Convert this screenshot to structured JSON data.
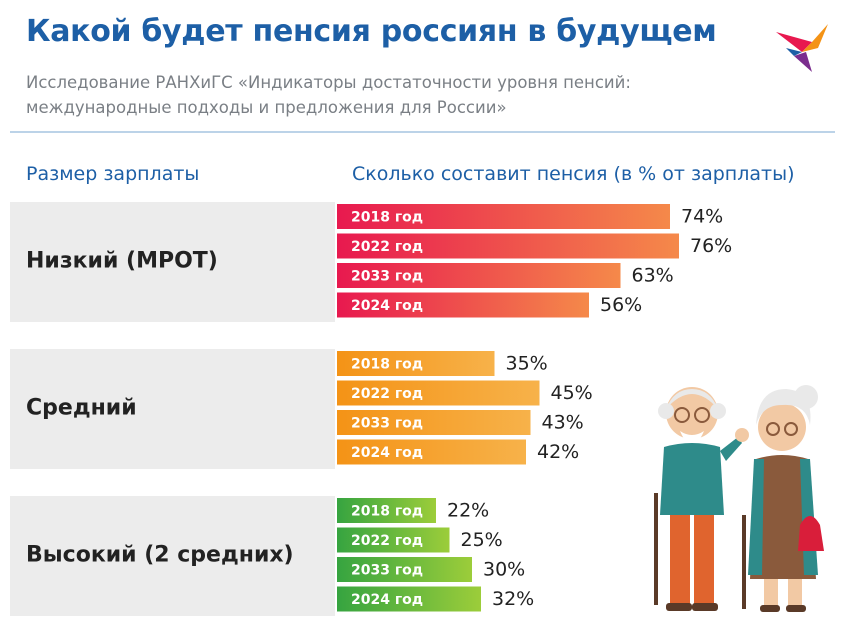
{
  "header": {
    "title": "Какой будет пенсия россиян в будущем",
    "subtitle_line1": "Исследование РАНХиГС «Индикаторы достаточности уровня пенсий:",
    "subtitle_line2": "международные подходы и предложения для России»"
  },
  "chart_data": {
    "type": "bar",
    "orientation": "horizontal",
    "xlabel": "Размер зарплаты",
    "ylabel": "Сколько составит пенсия (в % от зарплаты)",
    "value_suffix": "%",
    "year_labels": [
      "2018 год",
      "2022 год",
      "2033 год",
      "2024 год"
    ],
    "groups": [
      {
        "name": "Низкий (МРОТ)",
        "values": [
          74,
          76,
          63,
          56
        ],
        "color_from": "#e8194f",
        "color_to": "#f5894a"
      },
      {
        "name": "Средний",
        "values": [
          35,
          45,
          43,
          42
        ],
        "color_from": "#f49316",
        "color_to": "#f7b24a"
      },
      {
        "name": "Высокий (2 средних)",
        "values": [
          22,
          25,
          30,
          32
        ],
        "color_from": "#36a440",
        "color_to": "#9ccd3a"
      }
    ]
  },
  "colors": {
    "title": "#1d5fa6",
    "band": "#ececec",
    "separator": "#bcd3e8"
  },
  "icons": {
    "logo": "kp-bird-logo-icon",
    "illustration": "elderly-couple-icon"
  }
}
